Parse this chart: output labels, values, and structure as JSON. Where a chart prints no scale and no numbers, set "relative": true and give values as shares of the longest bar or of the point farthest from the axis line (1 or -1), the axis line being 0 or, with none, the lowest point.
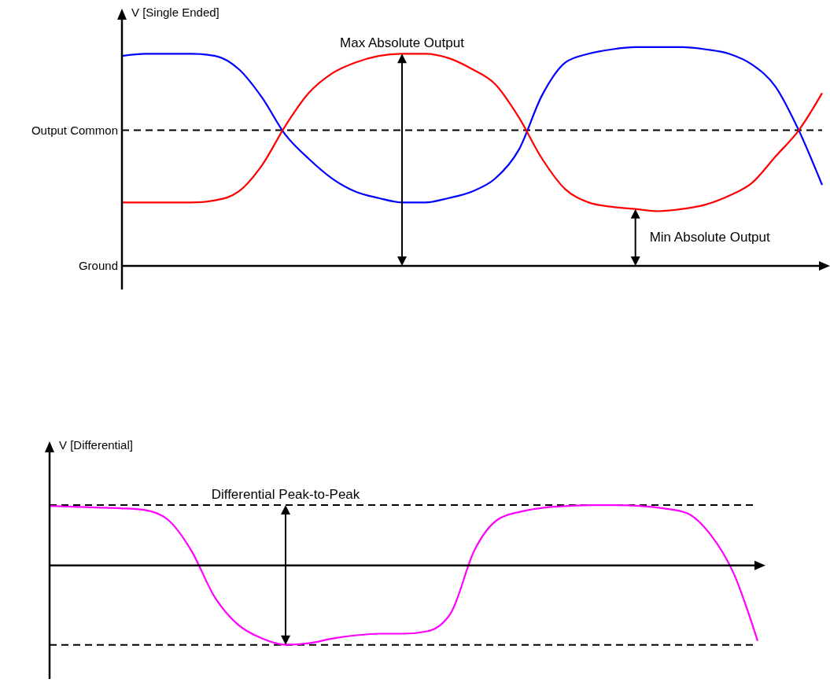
{
  "chart_data": [
    {
      "type": "line",
      "relative": true,
      "ylabel": "V [Single Ended]",
      "marker": "none",
      "line_style": "solid",
      "categories": [
        null,
        null,
        null,
        null,
        null,
        null,
        null,
        null,
        null,
        null,
        null,
        null,
        null,
        null,
        null,
        null,
        null,
        null,
        null,
        null,
        null,
        null,
        null,
        null,
        null,
        null,
        null,
        null,
        null,
        null,
        null
      ],
      "series": [
        {
          "color": "#0000ff",
          "values": [
            0.96,
            0.97,
            0.97,
            0.97,
            0.96,
            0.9,
            0.77,
            0.6,
            0.49,
            0.4,
            0.34,
            0.31,
            0.29,
            0.29,
            0.31,
            0.34,
            0.4,
            0.53,
            0.78,
            0.93,
            0.97,
            0.99,
            1,
            1,
            1,
            0.99,
            0.97,
            0.92,
            0.82,
            0.62,
            0.37
          ]
        },
        {
          "color": "#ff0000",
          "values": [
            0.29,
            0.29,
            0.29,
            0.29,
            0.3,
            0.34,
            0.46,
            0.64,
            0.79,
            0.88,
            0.93,
            0.96,
            0.97,
            0.97,
            0.95,
            0.9,
            0.83,
            0.68,
            0.49,
            0.35,
            0.29,
            0.27,
            0.26,
            0.25,
            0.26,
            0.28,
            0.32,
            0.38,
            0.5,
            0.62,
            0.79
          ]
        }
      ],
      "ref_lines": [
        {
          "axis": "y",
          "value": 0.62,
          "label": "Output Common",
          "line_style": "dashed"
        },
        {
          "axis": "y",
          "value": 0,
          "label": "Ground",
          "line_style": "solid"
        }
      ],
      "annotations": [
        "Max Absolute Output",
        "Min Absolute Output"
      ]
    },
    {
      "type": "line",
      "relative": true,
      "ylabel": "V [Differential]",
      "marker": "none",
      "line_style": "solid",
      "categories": [
        null,
        null,
        null,
        null,
        null,
        null,
        null,
        null,
        null,
        null,
        null,
        null,
        null,
        null,
        null,
        null,
        null,
        null,
        null,
        null,
        null,
        null,
        null,
        null,
        null,
        null,
        null,
        null,
        null,
        null,
        null
      ],
      "series": [
        {
          "color": "#ff00ff",
          "values": [
            0.75,
            0.74,
            0.73,
            0.72,
            0.7,
            0.58,
            0.19,
            -0.4,
            -0.75,
            -0.92,
            -1,
            -0.98,
            -0.92,
            -0.88,
            -0.86,
            -0.86,
            -0.83,
            -0.6,
            0.19,
            0.58,
            0.68,
            0.73,
            0.75,
            0.76,
            0.76,
            0.75,
            0.72,
            0.66,
            0.39,
            -0.11,
            -0.95
          ]
        }
      ],
      "ref_lines": [
        {
          "axis": "y",
          "value": 0.76,
          "line_style": "dashed"
        },
        {
          "axis": "y",
          "value": -1,
          "line_style": "dashed"
        }
      ],
      "annotations": [
        "Differential Peak-to-Peak"
      ]
    }
  ]
}
